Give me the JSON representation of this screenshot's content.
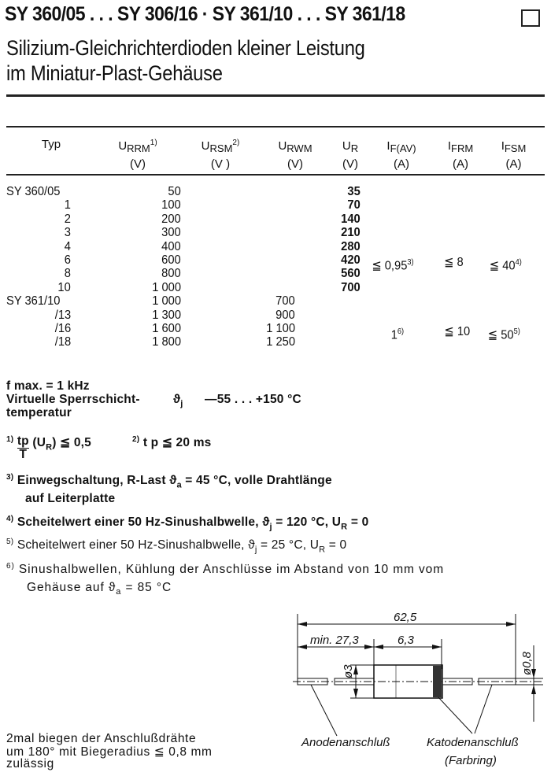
{
  "header": {
    "title": "SY 360/05 . . . SY 306/16 · SY 361/10 . . . SY 361/18",
    "subtitle_line1": "Silizium-Gleichrichterdioden kleiner Leistung",
    "subtitle_line2": "im Miniatur-Plast-Gehäuse",
    "checkbox_icon": "empty-square-icon"
  },
  "table": {
    "columns": [
      {
        "name": "Typ",
        "sub": "",
        "sup": "",
        "unit": ""
      },
      {
        "name": "U",
        "sub": "RRM",
        "sup": "1)",
        "unit": "(V)"
      },
      {
        "name": "U",
        "sub": "RSM",
        "sup": "2)",
        "unit": "(V )"
      },
      {
        "name": "U",
        "sub": "RWM",
        "sup": "",
        "unit": "(V)"
      },
      {
        "name": "U",
        "sub": "R",
        "sup": "",
        "unit": "(V)"
      },
      {
        "name": "I",
        "sub": "F(AV)",
        "sup": "",
        "unit": "(A)"
      },
      {
        "name": "I",
        "sub": "FRM",
        "sup": "",
        "unit": "(A)"
      },
      {
        "name": "I",
        "sub": "FSM",
        "sup": "",
        "unit": "(A)"
      }
    ],
    "rows": [
      {
        "typ": "SY 360/05",
        "urrm": "50",
        "urwm": "",
        "ur": "35"
      },
      {
        "typ": "1",
        "urrm": "100",
        "urwm": "",
        "ur": "70"
      },
      {
        "typ": "2",
        "urrm": "200",
        "urwm": "",
        "ur": "140"
      },
      {
        "typ": "3",
        "urrm": "300",
        "urwm": "",
        "ur": "210"
      },
      {
        "typ": "4",
        "urrm": "400",
        "urwm": "",
        "ur": "280"
      },
      {
        "typ": "6",
        "urrm": "600",
        "urwm": "",
        "ur": "420"
      },
      {
        "typ": "8",
        "urrm": "800",
        "urwm": "",
        "ur": "560"
      },
      {
        "typ": "10",
        "urrm": "1 000",
        "urwm": "",
        "ur": "700"
      },
      {
        "typ": "SY 361/10",
        "urrm": "1 000",
        "urwm": "700",
        "ur": ""
      },
      {
        "typ": "/13",
        "urrm": "1 300",
        "urwm": "900",
        "ur": ""
      },
      {
        "typ": "/16",
        "urrm": "1 600",
        "urwm": "1 100",
        "ur": ""
      },
      {
        "typ": "/18",
        "urrm": "1 800",
        "urwm": "1 250",
        "ur": ""
      }
    ],
    "group1": {
      "if_av": "≦ 0,95",
      "if_av_sup": "3)",
      "ifrm": "≦ 8",
      "ifsm": "≦ 40",
      "ifsm_sup": "4)"
    },
    "group2": {
      "if_av": "1",
      "if_av_sup": "6)",
      "ifrm": "≦ 10",
      "ifsm": "≦ 50",
      "ifsm_sup": "5)"
    }
  },
  "notes": {
    "fmax": "f max. = 1 kHz",
    "tj_label_1": "Virtuelle Sperrschicht-",
    "tj_label_2": "temperatur",
    "tj_symbol": "ϑ",
    "tj_sub": "j",
    "tj_value": "—55 . . . +150 °C",
    "fn1_mark": "1)",
    "fn1_num": "tp",
    "fn1_den": "T",
    "fn1_rest": "(U",
    "fn1_sub": "R",
    "fn1_end": ") ≦ 0,5",
    "fn2_mark": "2)",
    "fn2_text": "t p ≦ 20 ms",
    "fn3_mark": "3)",
    "fn3_line1": "Einwegschaltung, R-Last ϑ",
    "fn3_sub": "a",
    "fn3_line1_end": " = 45 °C, volle Drahtlänge",
    "fn3_line2": "auf Leiterplatte",
    "fn4_mark": "4)",
    "fn4_text": "Scheitelwert einer 50 Hz-Sinushalbwelle, ϑ",
    "fn4_sub": "j",
    "fn4_mid": " = 120 °C, U",
    "fn4_sub2": "R",
    "fn4_end": " = 0",
    "fn5_mark": "5)",
    "fn5_text": "Scheitelwert einer 50 Hz-Sinushalbwelle, ϑ",
    "fn5_sub": "j",
    "fn5_mid": " = 25 °C, U",
    "fn5_sub2": "R",
    "fn5_end": " = 0",
    "fn6_mark": "6)",
    "fn6_line1": "Sinushalbwellen, Kühlung der Anschlüsse im Abstand von 10 mm vom",
    "fn6_line2": "Gehäuse auf ϑ",
    "fn6_sub": "a",
    "fn6_end": " = 85 °C"
  },
  "bending": {
    "line1": "2mal biegen der Anschlußdrähte",
    "line2": "um 180° mit Biegeradius ≦ 0,8 mm",
    "line3": "zulässig"
  },
  "drawing": {
    "total_length": "62,5",
    "min_wire": "min. 27,3",
    "body_length": "6,3",
    "body_diameter": "ø3",
    "wire_diameter": "ø0,8",
    "anode_label": "Anodenanschluß",
    "cathode_label": "Katodenanschluß",
    "cathode_note": "(Farbring)"
  }
}
